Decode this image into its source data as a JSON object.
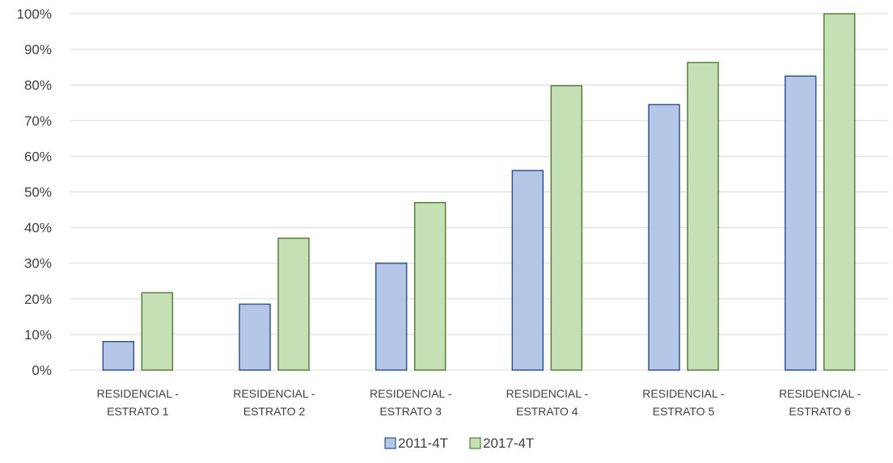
{
  "chart_data": {
    "type": "bar",
    "title": "",
    "xlabel": "",
    "ylabel": "",
    "categories": [
      [
        "RESIDENCIAL -",
        "ESTRATO 1"
      ],
      [
        "RESIDENCIAL -",
        "ESTRATO 2"
      ],
      [
        "RESIDENCIAL -",
        "ESTRATO 3"
      ],
      [
        "RESIDENCIAL -",
        "ESTRATO 4"
      ],
      [
        "RESIDENCIAL -",
        "ESTRATO 5"
      ],
      [
        "RESIDENCIAL -",
        "ESTRATO 6"
      ]
    ],
    "series": [
      {
        "name": "2011-4T",
        "values": [
          8,
          18.5,
          30,
          56,
          74.5,
          82.5
        ],
        "fill": "#b4c7e7",
        "stroke": "#2f5597"
      },
      {
        "name": "2017-4T",
        "values": [
          21.7,
          37,
          47,
          79.8,
          86.3,
          100
        ],
        "fill": "#c5e0b4",
        "stroke": "#548235"
      }
    ],
    "ylim": [
      0,
      100
    ],
    "yticks": [
      0,
      10,
      20,
      30,
      40,
      50,
      60,
      70,
      80,
      90,
      100
    ],
    "ytick_labels": [
      "0%",
      "10%",
      "20%",
      "30%",
      "40%",
      "50%",
      "60%",
      "70%",
      "80%",
      "90%",
      "100%"
    ],
    "grid": true,
    "legend_position": "bottom"
  }
}
